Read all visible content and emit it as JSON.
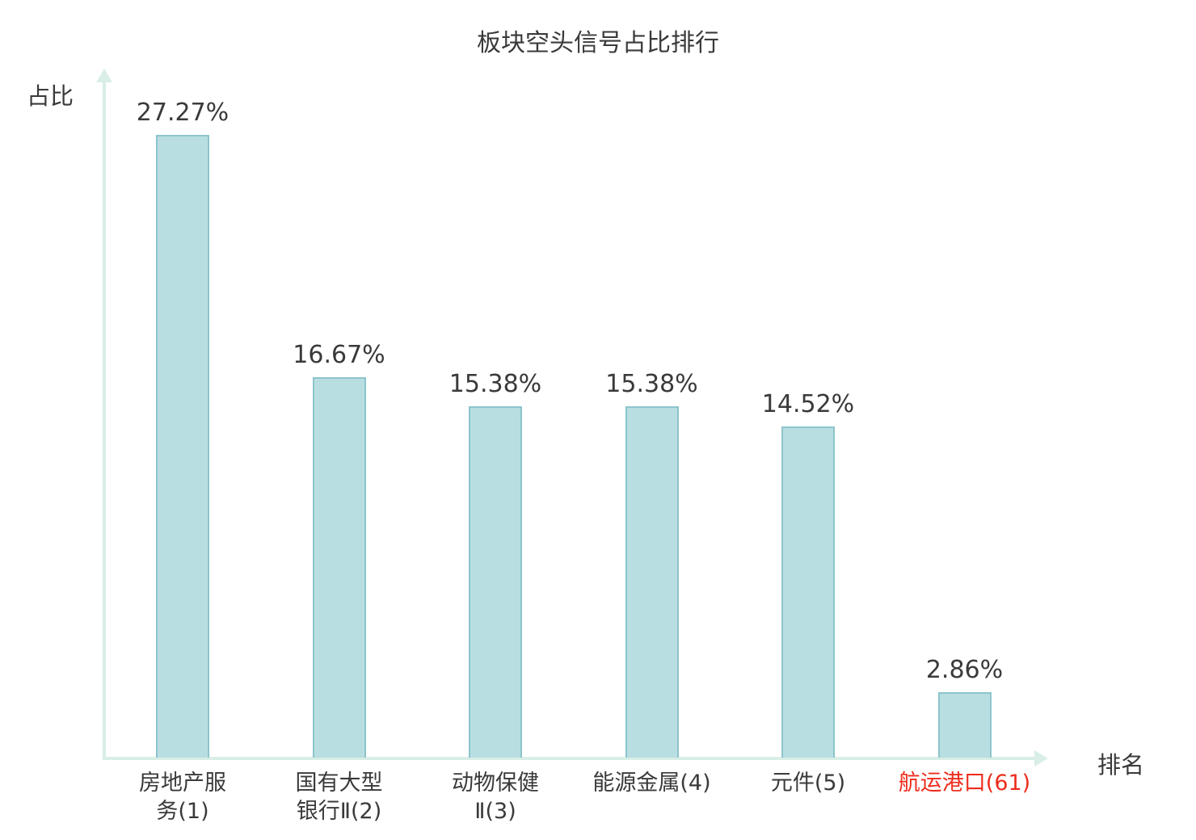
{
  "title": "板块空头信号占比排行",
  "y_axis_label": "占比",
  "x_axis_label": "排名",
  "colors": {
    "bar_fill": "#b9dee2",
    "bar_border": "#8cc5cb",
    "axis": "#d8eee6",
    "text": "#3a3a3a",
    "highlight": "#ee2c1c"
  },
  "chart_data": {
    "type": "bar",
    "title": "板块空头信号占比排行",
    "xlabel": "排名",
    "ylabel": "占比",
    "ylim": [
      0,
      30
    ],
    "grid": false,
    "legend": null,
    "categories": [
      "房地产服务(1)",
      "国有大型银行Ⅱ(2)",
      "动物保健Ⅱ(3)",
      "能源金属(4)",
      "元件(5)",
      "航运港口(61)"
    ],
    "categories_display": [
      "房地产服\n务(1)",
      "国有大型\n银行Ⅱ(2)",
      "动物保健\nⅡ(3)",
      "能源金属(4)",
      "元件(5)",
      "航运港口(61)"
    ],
    "values": [
      27.27,
      16.67,
      15.38,
      15.38,
      14.52,
      2.86
    ],
    "value_labels": [
      "27.27%",
      "16.67%",
      "15.38%",
      "15.38%",
      "14.52%",
      "2.86%"
    ],
    "highlight_index": 5
  }
}
